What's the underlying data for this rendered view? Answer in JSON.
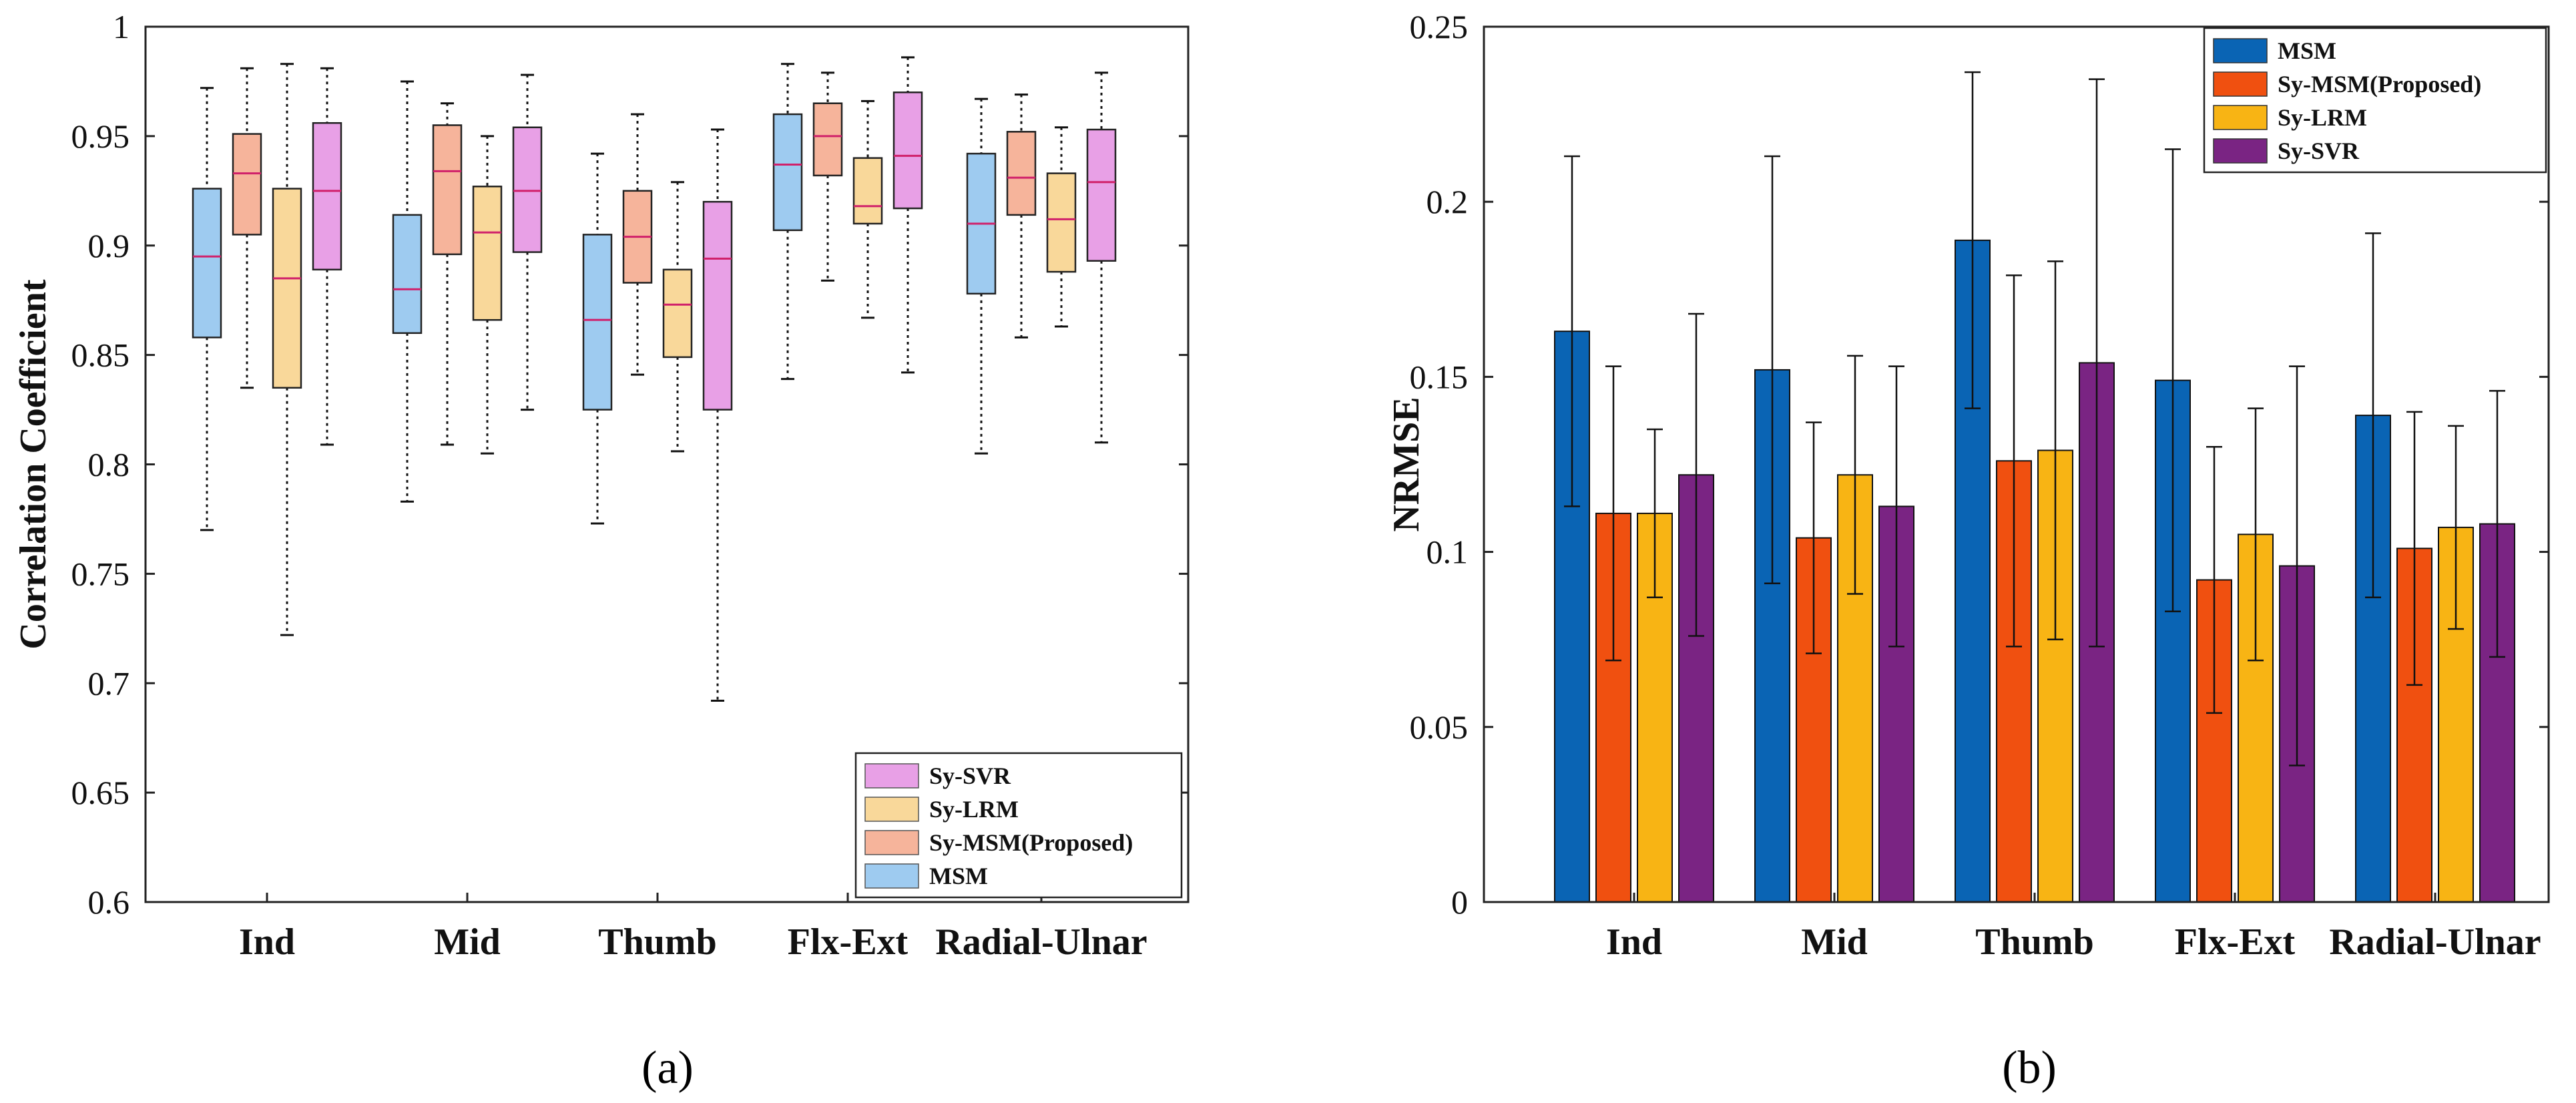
{
  "chart_data": [
    {
      "type": "box",
      "panel_label": "(a)",
      "ylabel": "Correlation Coefficient",
      "ylim": [
        0.6,
        1.0
      ],
      "yticks": [
        0.6,
        0.65,
        0.7,
        0.75,
        0.8,
        0.85,
        0.9,
        0.95,
        1.0
      ],
      "ytick_labels": [
        "0.6",
        "0.65",
        "0.7",
        "0.75",
        "0.8",
        "0.85",
        "0.9",
        "0.95",
        "1"
      ],
      "categories": [
        "Ind",
        "Mid",
        "Thumb",
        "Flx-Ext",
        "Radial-Ulnar"
      ],
      "legend_position": "bottom-right",
      "legend_entries": [
        "Sy-SVR",
        "Sy-LRM",
        "Sy-MSM(Proposed)",
        "MSM"
      ],
      "series": [
        {
          "name": "MSM",
          "color": "#9ecbf0",
          "stats": [
            {
              "min": 0.77,
              "q1": 0.858,
              "median": 0.895,
              "q3": 0.926,
              "max": 0.972
            },
            {
              "min": 0.783,
              "q1": 0.86,
              "median": 0.88,
              "q3": 0.914,
              "max": 0.975
            },
            {
              "min": 0.773,
              "q1": 0.825,
              "median": 0.866,
              "q3": 0.905,
              "max": 0.942
            },
            {
              "min": 0.839,
              "q1": 0.907,
              "median": 0.937,
              "q3": 0.96,
              "max": 0.983
            },
            {
              "min": 0.805,
              "q1": 0.878,
              "median": 0.91,
              "q3": 0.942,
              "max": 0.967
            }
          ]
        },
        {
          "name": "Sy-MSM(Proposed)",
          "color": "#f6b49b",
          "stats": [
            {
              "min": 0.835,
              "q1": 0.905,
              "median": 0.933,
              "q3": 0.951,
              "max": 0.981
            },
            {
              "min": 0.809,
              "q1": 0.896,
              "median": 0.934,
              "q3": 0.955,
              "max": 0.965
            },
            {
              "min": 0.841,
              "q1": 0.883,
              "median": 0.904,
              "q3": 0.925,
              "max": 0.96
            },
            {
              "min": 0.884,
              "q1": 0.932,
              "median": 0.95,
              "q3": 0.965,
              "max": 0.979
            },
            {
              "min": 0.858,
              "q1": 0.914,
              "median": 0.931,
              "q3": 0.952,
              "max": 0.969
            }
          ]
        },
        {
          "name": "Sy-LRM",
          "color": "#f9d89a",
          "stats": [
            {
              "min": 0.722,
              "q1": 0.835,
              "median": 0.885,
              "q3": 0.926,
              "max": 0.983
            },
            {
              "min": 0.805,
              "q1": 0.866,
              "median": 0.906,
              "q3": 0.927,
              "max": 0.95
            },
            {
              "min": 0.806,
              "q1": 0.849,
              "median": 0.873,
              "q3": 0.889,
              "max": 0.929
            },
            {
              "min": 0.867,
              "q1": 0.91,
              "median": 0.918,
              "q3": 0.94,
              "max": 0.966
            },
            {
              "min": 0.863,
              "q1": 0.888,
              "median": 0.912,
              "q3": 0.933,
              "max": 0.954
            }
          ]
        },
        {
          "name": "Sy-SVR",
          "color": "#e8a0e6",
          "stats": [
            {
              "min": 0.809,
              "q1": 0.889,
              "median": 0.925,
              "q3": 0.956,
              "max": 0.981
            },
            {
              "min": 0.825,
              "q1": 0.897,
              "median": 0.925,
              "q3": 0.954,
              "max": 0.978
            },
            {
              "min": 0.692,
              "q1": 0.825,
              "median": 0.894,
              "q3": 0.92,
              "max": 0.953
            },
            {
              "min": 0.842,
              "q1": 0.917,
              "median": 0.941,
              "q3": 0.97,
              "max": 0.986
            },
            {
              "min": 0.81,
              "q1": 0.893,
              "median": 0.929,
              "q3": 0.953,
              "max": 0.979
            }
          ]
        }
      ]
    },
    {
      "type": "bar",
      "panel_label": "(b)",
      "ylabel": "NRMSE",
      "ylim": [
        0,
        0.25
      ],
      "yticks": [
        0,
        0.05,
        0.1,
        0.15,
        0.2,
        0.25
      ],
      "ytick_labels": [
        "0",
        "0.05",
        "0.1",
        "0.15",
        "0.2",
        "0.25"
      ],
      "categories": [
        "Ind",
        "Mid",
        "Thumb",
        "Flx-Ext",
        "Radial-Ulnar"
      ],
      "legend_position": "top-right",
      "legend_entries": [
        "MSM",
        "Sy-MSM(Proposed)",
        "Sy-LRM",
        "Sy-SVR"
      ],
      "series": [
        {
          "name": "MSM",
          "color": "#0a64b4",
          "values": [
            0.163,
            0.152,
            0.189,
            0.149,
            0.139
          ],
          "errors": [
            0.05,
            0.061,
            0.048,
            0.066,
            0.052
          ]
        },
        {
          "name": "Sy-MSM(Proposed)",
          "color": "#f05010",
          "values": [
            0.111,
            0.104,
            0.126,
            0.092,
            0.101
          ],
          "errors": [
            0.042,
            0.033,
            0.053,
            0.038,
            0.039
          ]
        },
        {
          "name": "Sy-LRM",
          "color": "#f8b414",
          "values": [
            0.111,
            0.122,
            0.129,
            0.105,
            0.107
          ],
          "errors": [
            0.024,
            0.034,
            0.054,
            0.036,
            0.029
          ]
        },
        {
          "name": "Sy-SVR",
          "color": "#7a2483",
          "values": [
            0.122,
            0.113,
            0.154,
            0.096,
            0.108
          ],
          "errors": [
            0.046,
            0.04,
            0.081,
            0.057,
            0.038
          ]
        }
      ]
    }
  ]
}
